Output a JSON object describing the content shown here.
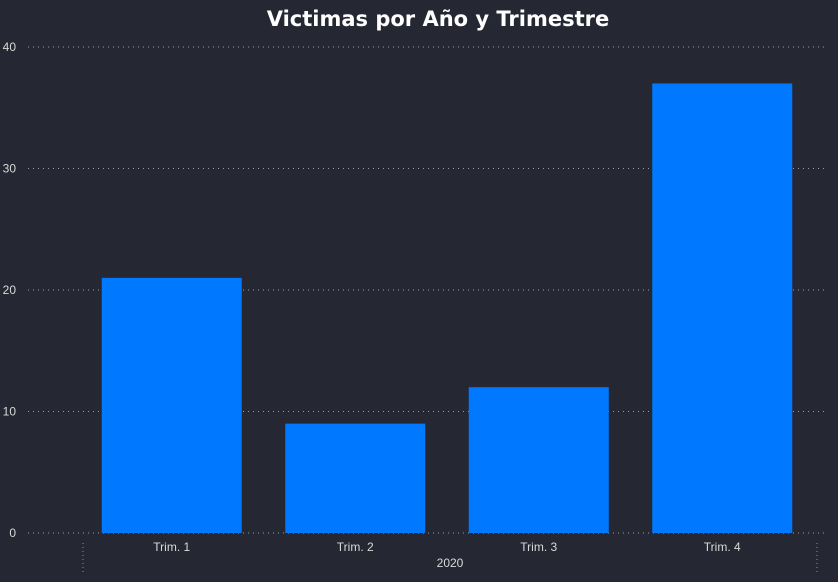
{
  "chart_data": {
    "type": "bar",
    "title": "Victimas por Año y Trimestre",
    "categories": [
      "Trim. 1",
      "Trim. 2",
      "Trim. 3",
      "Trim. 4"
    ],
    "group_label": "2020",
    "values": [
      21,
      9,
      12,
      37
    ],
    "ylim": [
      0,
      40
    ],
    "yticks": [
      "0",
      "10",
      "20",
      "30",
      "40"
    ],
    "grid": true,
    "bar_color": "#0078FF",
    "background_color": "#252833"
  }
}
